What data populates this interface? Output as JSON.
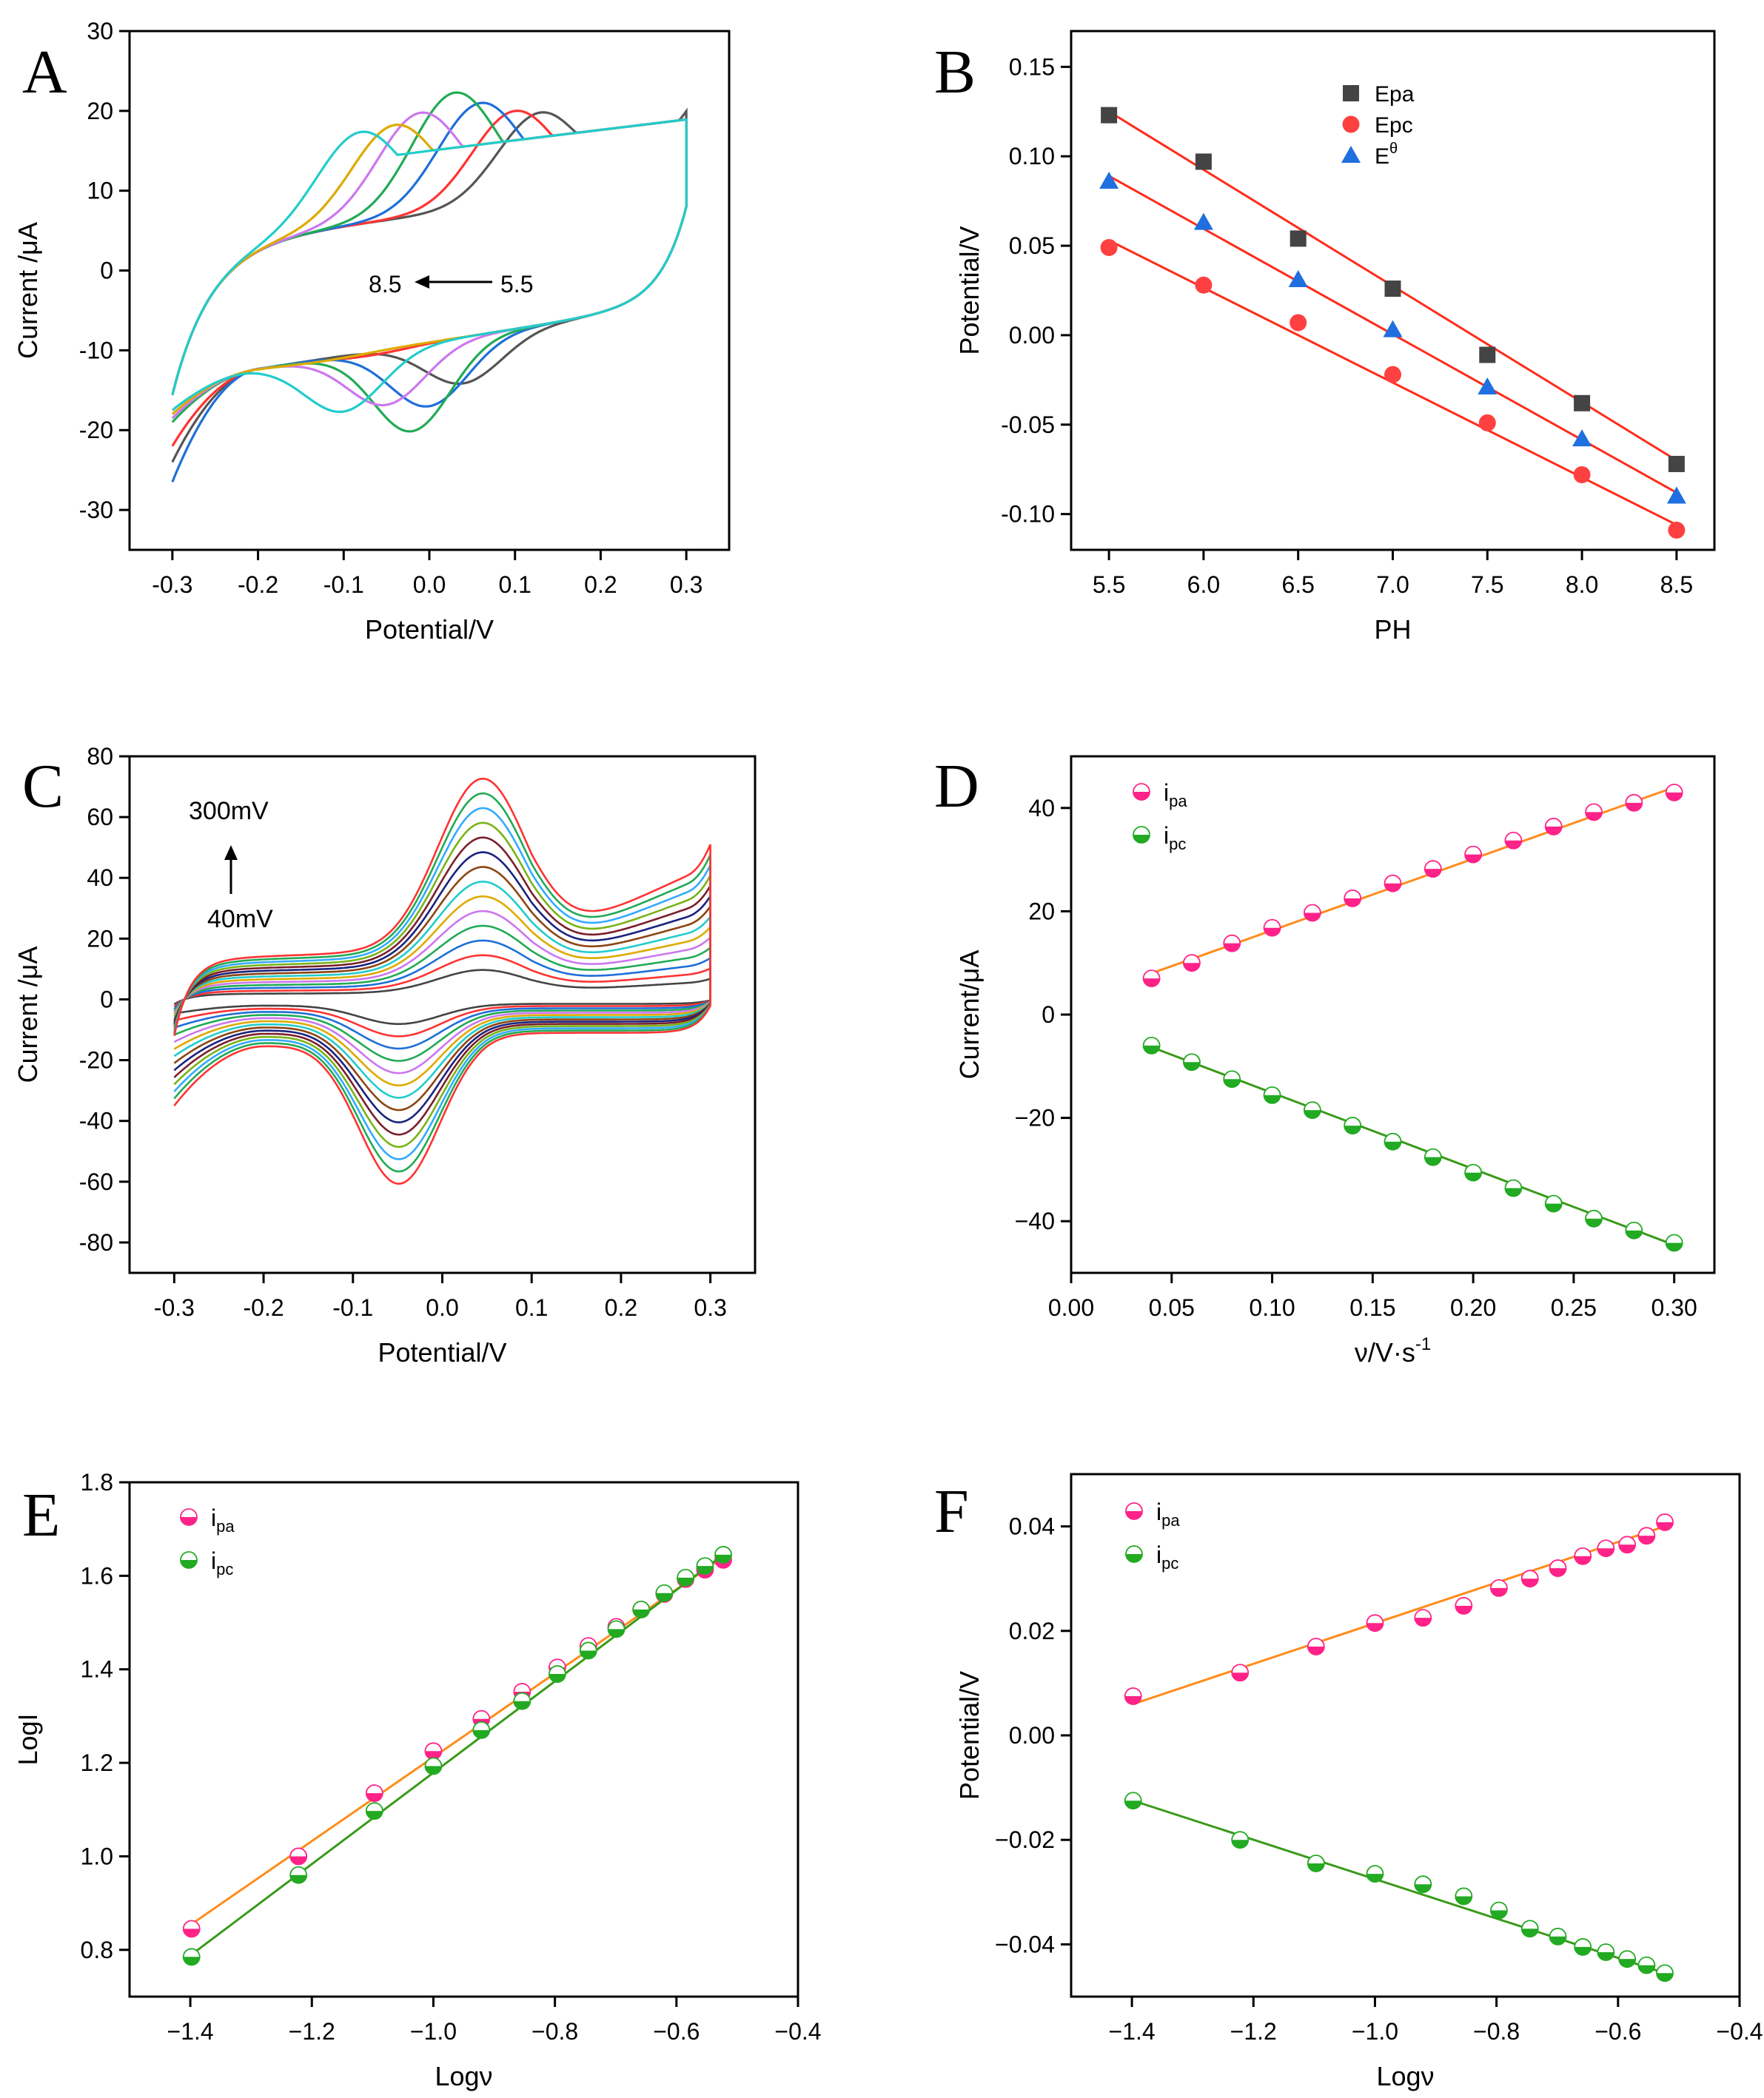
{
  "chart_data": [
    {
      "panel": "A",
      "type": "line",
      "xlabel": "Potential/V",
      "ylabel": "Current /μA",
      "xlim": [
        -0.35,
        0.35
      ],
      "ylim": [
        -35,
        30
      ],
      "xticks": [
        -0.3,
        -0.2,
        -0.1,
        0.0,
        0.1,
        0.2,
        0.3
      ],
      "xtick_labels": [
        "-0.3",
        "-0.2",
        "-0.1",
        "0.0",
        "0.1",
        "0.2",
        "0.3"
      ],
      "yticks": [
        -30,
        -20,
        -10,
        0,
        10,
        20,
        30
      ],
      "ytick_labels": [
        "-30",
        "-20",
        "-10",
        "0",
        "10",
        "20",
        "30"
      ],
      "annotation": {
        "left": "8.5",
        "right": "5.5"
      },
      "series": [
        {
          "color": "#555555",
          "pa": [
            0.13,
            19.8
          ],
          "pc": [
            0.04,
            -17.8
          ],
          "end_top": 23.0,
          "end_bot": -26.0
        },
        {
          "color": "#ff3333",
          "pa": [
            0.1,
            20.0
          ],
          "pc": [
            -0.07,
            -12.5
          ],
          "end_top": 20.5,
          "end_bot": -24.0
        },
        {
          "color": "#1e6fd9",
          "pa": [
            0.06,
            21.0
          ],
          "pc": [
            0.0,
            -20.0
          ],
          "end_top": 19.0,
          "end_bot": -28.5
        },
        {
          "color": "#22aa55",
          "pa": [
            0.03,
            22.3
          ],
          "pc": [
            -0.02,
            -22.8
          ],
          "end_top": 18.0,
          "end_bot": -21.0
        },
        {
          "color": "#cc77ee",
          "pa": [
            -0.01,
            19.8
          ],
          "pc": [
            -0.05,
            -19.0
          ],
          "end_top": 17.0,
          "end_bot": -20.5
        },
        {
          "color": "#ddaa00",
          "pa": [
            -0.04,
            18.3
          ],
          "pc": [
            -0.12,
            -12.3
          ],
          "end_top": 16.0,
          "end_bot": -20.0
        },
        {
          "color": "#22cccc",
          "pa": [
            -0.08,
            17.5
          ],
          "pc": [
            -0.1,
            -19.0
          ],
          "end_top": 14.5,
          "end_bot": -19.5
        }
      ]
    },
    {
      "panel": "B",
      "type": "scatter",
      "xlabel": "PH",
      "ylabel": "Potential/V",
      "xlim": [
        5.3,
        8.7
      ],
      "ylim": [
        -0.12,
        0.17
      ],
      "xticks": [
        5.5,
        6.0,
        6.5,
        7.0,
        7.5,
        8.0,
        8.5
      ],
      "xtick_labels": [
        "5.5",
        "6.0",
        "6.5",
        "7.0",
        "7.5",
        "8.0",
        "8.5"
      ],
      "yticks": [
        -0.1,
        -0.05,
        0.0,
        0.05,
        0.1,
        0.15
      ],
      "ytick_labels": [
        "-0.10",
        "-0.05",
        "0.00",
        "0.05",
        "0.10",
        "0.15"
      ],
      "x": [
        5.5,
        6.0,
        6.5,
        7.0,
        7.5,
        8.0,
        8.5
      ],
      "series": [
        {
          "name": "Epa",
          "marker": "square",
          "color": "#444444",
          "values": [
            0.123,
            0.097,
            0.054,
            0.026,
            -0.011,
            -0.038,
            -0.072
          ],
          "fit": [
            5.5,
            0.125,
            8.5,
            -0.07
          ]
        },
        {
          "name": "Epc",
          "marker": "circle",
          "color": "#ff4040",
          "values": [
            0.049,
            0.028,
            0.007,
            -0.022,
            -0.049,
            -0.078,
            -0.109
          ],
          "fit": [
            5.5,
            0.053,
            8.5,
            -0.106
          ]
        },
        {
          "name": "E",
          "name_sup": "θ",
          "marker": "triangle",
          "color": "#1f6fe0",
          "values": [
            0.086,
            0.063,
            0.031,
            0.003,
            -0.029,
            -0.058,
            -0.09
          ],
          "fit": [
            5.5,
            0.089,
            8.5,
            -0.088
          ]
        }
      ]
    },
    {
      "panel": "C",
      "type": "line",
      "xlabel": "Potential/V",
      "ylabel": "Current /μA",
      "xlim": [
        -0.35,
        0.35
      ],
      "ylim": [
        -90,
        80
      ],
      "xticks": [
        -0.3,
        -0.2,
        -0.1,
        0.0,
        0.1,
        0.2,
        0.3
      ],
      "xtick_labels": [
        "-0.3",
        "-0.2",
        "-0.1",
        "0.0",
        "0.1",
        "0.2",
        "0.3"
      ],
      "yticks": [
        -80,
        -60,
        -40,
        -20,
        0,
        20,
        40,
        60,
        80
      ],
      "ytick_labels": [
        "-80",
        "-60",
        "-40",
        "-20",
        "0",
        "20",
        "40",
        "60",
        "80"
      ],
      "annotation": {
        "top": "300mV",
        "bottom": "40mV"
      },
      "scan_rates": [
        0.04,
        0.06,
        0.08,
        0.1,
        0.12,
        0.14,
        0.16,
        0.18,
        0.2,
        0.22,
        0.24,
        0.26,
        0.28,
        0.3
      ],
      "colors": [
        "#444444",
        "#ff3333",
        "#1e6fd9",
        "#22aa55",
        "#cc77ee",
        "#ddaa00",
        "#22cccc",
        "#8b4513",
        "#1a237e",
        "#7a1f2b",
        "#7ab317",
        "#33aaff",
        "#22aa55",
        "#ff3333"
      ]
    },
    {
      "panel": "D",
      "type": "scatter",
      "xlabel": "ν/V·s",
      "xlabel_sup": "-1",
      "ylabel": "Current/μA",
      "xlim": [
        0.0,
        0.32
      ],
      "ylim": [
        -50,
        50
      ],
      "xticks": [
        0.0,
        0.05,
        0.1,
        0.15,
        0.2,
        0.25,
        0.3
      ],
      "xtick_labels": [
        "0.00",
        "0.05",
        "0.10",
        "0.15",
        "0.20",
        "0.25",
        "0.30"
      ],
      "yticks": [
        -40,
        -20,
        0,
        20,
        40
      ],
      "ytick_labels": [
        "−40",
        "−20",
        "0",
        "20",
        "40"
      ],
      "x": [
        0.04,
        0.06,
        0.08,
        0.1,
        0.12,
        0.14,
        0.16,
        0.18,
        0.2,
        0.22,
        0.24,
        0.26,
        0.28,
        0.3
      ],
      "series": [
        {
          "name": "i",
          "name_sub": "pa",
          "color": "#ff2288",
          "line_color": "#ff8c1a",
          "values": [
            7.0,
            10.0,
            13.8,
            16.8,
            19.7,
            22.5,
            25.4,
            28.2,
            31.0,
            33.7,
            36.4,
            39.2,
            41.0,
            43.0
          ],
          "fit": [
            0.04,
            8.0,
            0.3,
            44.0
          ]
        },
        {
          "name": "i",
          "name_sub": "pc",
          "color": "#22aa22",
          "line_color": "#3a9a1a",
          "values": [
            -6.0,
            -9.2,
            -12.5,
            -15.6,
            -18.5,
            -21.5,
            -24.6,
            -27.6,
            -30.6,
            -33.6,
            -36.6,
            -39.5,
            -41.8,
            -44.2
          ],
          "fit": [
            0.04,
            -6.3,
            0.3,
            -44.6
          ]
        }
      ]
    },
    {
      "panel": "E",
      "type": "scatter",
      "xlabel": "Logν",
      "ylabel": "LogI",
      "xlim": [
        -1.5,
        -0.4
      ],
      "ylim": [
        0.7,
        1.8
      ],
      "xticks": [
        -1.4,
        -1.2,
        -1.0,
        -0.8,
        -0.6,
        -0.4
      ],
      "xtick_labels": [
        "−1.4",
        "−1.2",
        "−1.0",
        "−0.8",
        "−0.6",
        "−0.4"
      ],
      "yticks": [
        0.8,
        1.0,
        1.2,
        1.4,
        1.6,
        1.8
      ],
      "ytick_labels": [
        "0.8",
        "1.0",
        "1.2",
        "1.4",
        "1.6",
        "1.8"
      ],
      "x": [
        -1.398,
        -1.222,
        -1.097,
        -1.0,
        -0.921,
        -0.854,
        -0.796,
        -0.745,
        -0.699,
        -0.658,
        -0.62,
        -0.585,
        -0.553,
        -0.523
      ],
      "series": [
        {
          "name": "i",
          "name_sub": "pa",
          "color": "#ff2288",
          "line_color": "#ff8c1a",
          "values": [
            0.845,
            1.0,
            1.135,
            1.225,
            1.294,
            1.352,
            1.404,
            1.45,
            1.491,
            1.528,
            1.561,
            1.593,
            1.613,
            1.634
          ],
          "fit": [
            -1.398,
            0.855,
            -0.523,
            1.64
          ]
        },
        {
          "name": "i",
          "name_sub": "pc",
          "color": "#22aa22",
          "line_color": "#3a9a1a",
          "values": [
            0.785,
            0.96,
            1.097,
            1.193,
            1.27,
            1.332,
            1.39,
            1.44,
            1.486,
            1.528,
            1.563,
            1.596,
            1.621,
            1.645
          ],
          "fit": [
            -1.398,
            0.79,
            -0.523,
            1.645
          ]
        }
      ]
    },
    {
      "panel": "F",
      "type": "scatter",
      "xlabel": "Logν",
      "ylabel": "Potential/V",
      "xlim": [
        -1.5,
        -0.4
      ],
      "ylim": [
        -0.05,
        0.05
      ],
      "xticks": [
        -1.4,
        -1.2,
        -1.0,
        -0.8,
        -0.6,
        -0.4
      ],
      "xtick_labels": [
        "−1.4",
        "−1.2",
        "−1.0",
        "−0.8",
        "−0.6",
        "−0.4"
      ],
      "yticks": [
        -0.04,
        -0.02,
        0.0,
        0.02,
        0.04
      ],
      "ytick_labels": [
        "−0.04",
        "−0.02",
        "0.00",
        "0.02",
        "0.04"
      ],
      "x": [
        -1.398,
        -1.222,
        -1.097,
        -1.0,
        -0.921,
        -0.854,
        -0.796,
        -0.745,
        -0.699,
        -0.658,
        -0.62,
        -0.585,
        -0.553,
        -0.523
      ],
      "series": [
        {
          "name": "i",
          "name_sub": "pa",
          "color": "#ff2288",
          "line_color": "#ff8c1a",
          "values": [
            0.0075,
            0.012,
            0.017,
            0.0215,
            0.0225,
            0.0248,
            0.0282,
            0.03,
            0.032,
            0.0343,
            0.0358,
            0.0365,
            0.0382,
            0.0408
          ],
          "fit": [
            -1.398,
            0.006,
            -0.523,
            0.04
          ]
        },
        {
          "name": "i",
          "name_sub": "pc",
          "color": "#22aa22",
          "line_color": "#3a9a1a",
          "values": [
            -0.0125,
            -0.02,
            -0.0245,
            -0.0265,
            -0.0285,
            -0.0308,
            -0.0335,
            -0.037,
            -0.0385,
            -0.0405,
            -0.0415,
            -0.0428,
            -0.044,
            -0.0455
          ],
          "fit": [
            -1.398,
            -0.0125,
            -0.523,
            -0.0455
          ]
        }
      ]
    }
  ]
}
